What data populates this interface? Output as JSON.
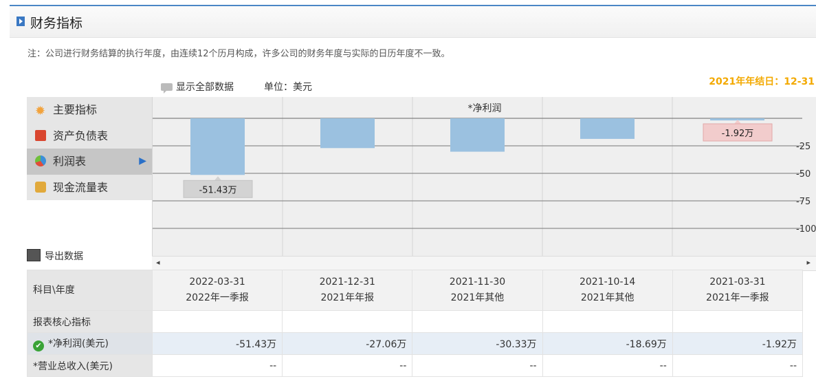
{
  "section": {
    "title": "财务指标",
    "note": "注：公司进行财务结算的执行年度，由连续12个历月构成，许多公司的财务年度与实际的日历年度不一致。",
    "fiscal_year_end": "2021年年结日：12-31"
  },
  "toolbar": {
    "show_all": "显示全部数据",
    "unit": "单位：美元"
  },
  "menu": {
    "items": [
      {
        "label": "主要指标",
        "icon": "gear-icon"
      },
      {
        "label": "资产负债表",
        "icon": "document-icon"
      },
      {
        "label": "利润表",
        "icon": "pie-chart-icon",
        "active": true
      },
      {
        "label": "现金流量表",
        "icon": "coins-icon"
      }
    ]
  },
  "export": {
    "label": "导出数据"
  },
  "chart_data": {
    "type": "bar",
    "title": "*净利润",
    "categories": [
      "2022-03-31",
      "2021-12-31",
      "2021-11-30",
      "2021-10-14",
      "2021-03-31"
    ],
    "series": [
      {
        "values": [
          -51.43,
          -27.06,
          -30.33,
          -18.69,
          -1.92
        ]
      }
    ],
    "yticks": [
      "-25",
      "-50",
      "-75",
      "-100"
    ],
    "ylim": [
      -100,
      0
    ],
    "tooltips": [
      {
        "index": 0,
        "text": "-51.43万"
      },
      {
        "index": 4,
        "text": "-1.92万"
      }
    ],
    "bar_color": "#9bc1e0",
    "grid": true
  },
  "scroll": {
    "left": "◂",
    "right": "▸"
  },
  "table": {
    "corner": "科目\\年度",
    "columns": [
      {
        "date": "2022-03-31",
        "period": "2022年一季报"
      },
      {
        "date": "2021-12-31",
        "period": "2021年年报"
      },
      {
        "date": "2021-11-30",
        "period": "2021年其他"
      },
      {
        "date": "2021-10-14",
        "period": "2021年其他"
      },
      {
        "date": "2021-03-31",
        "period": "2021年一季报"
      }
    ],
    "section_label": "报表核心指标",
    "rows": [
      {
        "label": "*净利润(美元)",
        "values": [
          "-51.43万",
          "-27.06万",
          "-30.33万",
          "-18.69万",
          "-1.92万"
        ]
      },
      {
        "label": "*营业总收入(美元)",
        "values": [
          "--",
          "--",
          "--",
          "--",
          "--"
        ]
      }
    ]
  }
}
